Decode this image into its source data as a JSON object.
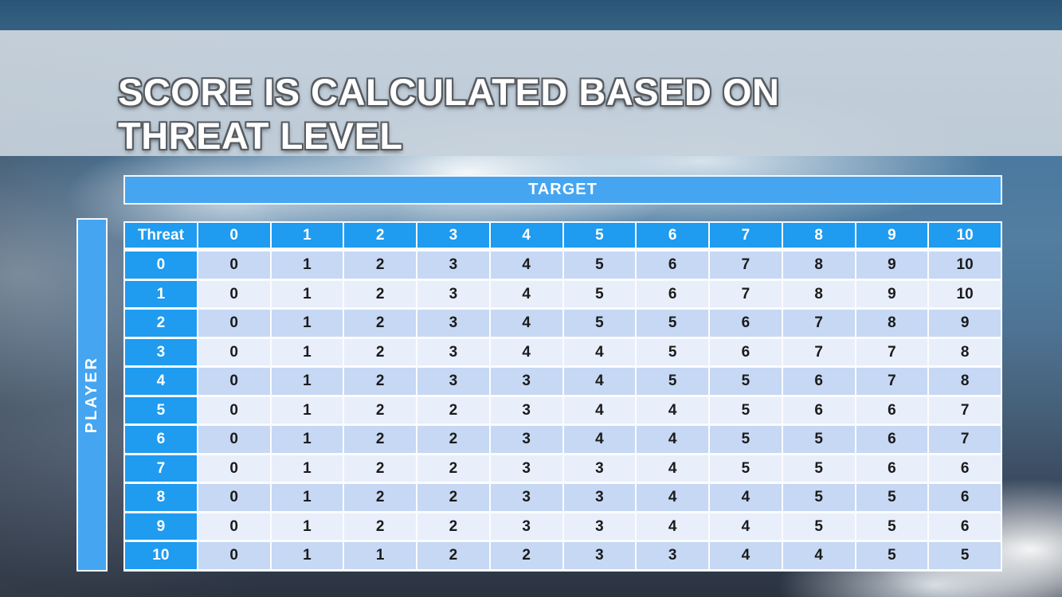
{
  "slide_title": {
    "line1": "SCORE IS CALCULATED BASED ON",
    "line2": "THREAT LEVEL"
  },
  "score_table": {
    "target_label": "TARGET",
    "player_label": "PLAYER",
    "corner_label": "Threat",
    "column_headers": [
      "0",
      "1",
      "2",
      "3",
      "4",
      "5",
      "6",
      "7",
      "8",
      "9",
      "10"
    ],
    "rows": [
      {
        "header": "0",
        "values": [
          0,
          1,
          2,
          3,
          4,
          5,
          6,
          7,
          8,
          9,
          10
        ]
      },
      {
        "header": "1",
        "values": [
          0,
          1,
          2,
          3,
          4,
          5,
          6,
          7,
          8,
          9,
          10
        ]
      },
      {
        "header": "2",
        "values": [
          0,
          1,
          2,
          3,
          4,
          5,
          5,
          6,
          7,
          8,
          9
        ]
      },
      {
        "header": "3",
        "values": [
          0,
          1,
          2,
          3,
          4,
          4,
          5,
          6,
          7,
          7,
          8
        ]
      },
      {
        "header": "4",
        "values": [
          0,
          1,
          2,
          3,
          3,
          4,
          5,
          5,
          6,
          7,
          8
        ]
      },
      {
        "header": "5",
        "values": [
          0,
          1,
          2,
          2,
          3,
          4,
          4,
          5,
          6,
          6,
          7
        ]
      },
      {
        "header": "6",
        "values": [
          0,
          1,
          2,
          2,
          3,
          4,
          4,
          5,
          5,
          6,
          7
        ]
      },
      {
        "header": "7",
        "values": [
          0,
          1,
          2,
          2,
          3,
          3,
          4,
          5,
          5,
          6,
          6
        ]
      },
      {
        "header": "8",
        "values": [
          0,
          1,
          2,
          2,
          3,
          3,
          4,
          4,
          5,
          5,
          6
        ]
      },
      {
        "header": "9",
        "values": [
          0,
          1,
          2,
          2,
          3,
          3,
          4,
          4,
          5,
          5,
          6
        ]
      },
      {
        "header": "10",
        "values": [
          0,
          1,
          1,
          2,
          2,
          3,
          3,
          4,
          4,
          5,
          5
        ]
      }
    ]
  },
  "colors": {
    "bar_blue": "#45a5f1",
    "header_blue": "#1f9bf0",
    "row_dark_bg": "#c6d8f4",
    "row_light_bg": "#e9eefb",
    "cell_text": "#1b1b1b",
    "title_color": "#ffffff"
  }
}
